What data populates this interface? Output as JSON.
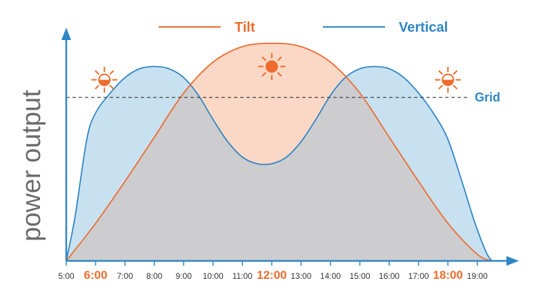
{
  "chart_data": {
    "type": "area",
    "ylabel": "power output",
    "xlabel": "",
    "x_tick_labels": [
      "5:00",
      "6:00",
      "7:00",
      "8:00",
      "9:00",
      "10:00",
      "11:00",
      "12:00",
      "13:00",
      "14:00",
      "15:00",
      "16:00",
      "17:00",
      "18:00",
      "19:00"
    ],
    "highlighted_ticks": [
      "6:00",
      "12:00",
      "18:00"
    ],
    "xlim": [
      5,
      19.9
    ],
    "ylim": [
      0,
      1
    ],
    "grid": false,
    "legend_position": "top-center",
    "series": [
      {
        "name": "Tilt",
        "color": "#ee6b2d",
        "fill": "#fbd8c6",
        "x": [
          5,
          6,
          7,
          8,
          9,
          10,
          11,
          12,
          13,
          14,
          15,
          16,
          17,
          18,
          19,
          19.5
        ],
        "values": [
          0.0,
          0.17,
          0.36,
          0.56,
          0.76,
          0.9,
          0.97,
          0.985,
          0.97,
          0.9,
          0.76,
          0.56,
          0.36,
          0.17,
          0.03,
          0.0
        ]
      },
      {
        "name": "Vertical",
        "color": "#2f86c6",
        "fill": "#c8e1f1",
        "x": [
          5,
          5.3,
          5.7,
          6,
          6.5,
          7,
          7.5,
          8,
          8.5,
          9,
          9.5,
          10,
          10.5,
          11,
          11.5,
          12,
          12.5,
          13,
          13.5,
          14,
          14.5,
          15,
          15.5,
          16,
          16.5,
          17,
          17.5,
          18,
          18.5,
          18.9,
          19.3,
          19.5
        ],
        "values": [
          0.0,
          0.2,
          0.55,
          0.67,
          0.76,
          0.83,
          0.87,
          0.88,
          0.87,
          0.83,
          0.75,
          0.64,
          0.54,
          0.47,
          0.44,
          0.44,
          0.47,
          0.54,
          0.64,
          0.75,
          0.83,
          0.87,
          0.88,
          0.87,
          0.83,
          0.76,
          0.67,
          0.55,
          0.35,
          0.18,
          0.04,
          0.0
        ]
      }
    ],
    "overlap_fill": "#cdcdcf",
    "reference_line": {
      "label": "Grid",
      "value": 0.74,
      "style": "dashed",
      "color": "#2f86c6"
    },
    "annotations": [
      {
        "icon": "half-sun-icon",
        "x": 6.3,
        "y": 0.82
      },
      {
        "icon": "full-sun-icon",
        "x": 12.0,
        "y": 0.88
      },
      {
        "icon": "half-sun-icon",
        "x": 18.0,
        "y": 0.82
      }
    ],
    "colors": {
      "accent": "#ee6b2d",
      "axis": "#2f86c6"
    }
  }
}
